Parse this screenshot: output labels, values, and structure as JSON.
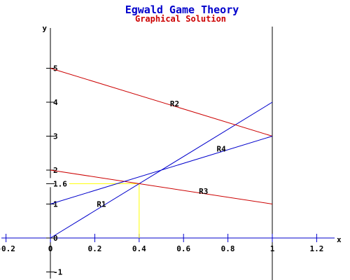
{
  "chart_data": {
    "type": "line",
    "title": "Egwald Game Theory",
    "subtitle": "Graphical Solution",
    "xlabel": "x",
    "ylabel": "y",
    "xlim": [
      -0.22,
      1.3
    ],
    "ylim": [
      -1.2,
      6.3
    ],
    "x_ticks": [
      -0.2,
      0,
      0.2,
      0.4,
      0.6,
      0.8,
      1,
      1.2
    ],
    "x_tick_labels": [
      "-0.2",
      "0",
      "0.2",
      "0.4",
      "0.6",
      "0.8",
      "1",
      "1.2"
    ],
    "y_ticks": [
      -1,
      0,
      1,
      2,
      3,
      4,
      5
    ],
    "y_tick_labels": [
      "-1",
      "0",
      "1",
      "2",
      "3",
      "4",
      "5"
    ],
    "vertical_line_x": 1,
    "series": [
      {
        "name": "R1",
        "x": [
          0,
          1
        ],
        "y": [
          0,
          4
        ],
        "color": "#0000cc",
        "label_at": [
          0.23,
          0.92
        ]
      },
      {
        "name": "R2",
        "x": [
          0,
          1
        ],
        "y": [
          5,
          3
        ],
        "color": "#cc0000",
        "label_at": [
          0.56,
          3.88
        ]
      },
      {
        "name": "R3",
        "x": [
          0,
          1
        ],
        "y": [
          2,
          1
        ],
        "color": "#cc0000",
        "label_at": [
          0.69,
          1.3
        ]
      },
      {
        "name": "R4",
        "x": [
          0,
          1
        ],
        "y": [
          1,
          3
        ],
        "color": "#0000cc",
        "label_at": [
          0.77,
          2.55
        ]
      }
    ],
    "solution": {
      "x": 0.4,
      "y": 1.6,
      "label": "1.6",
      "color": "#ffff00"
    },
    "grid": false
  }
}
